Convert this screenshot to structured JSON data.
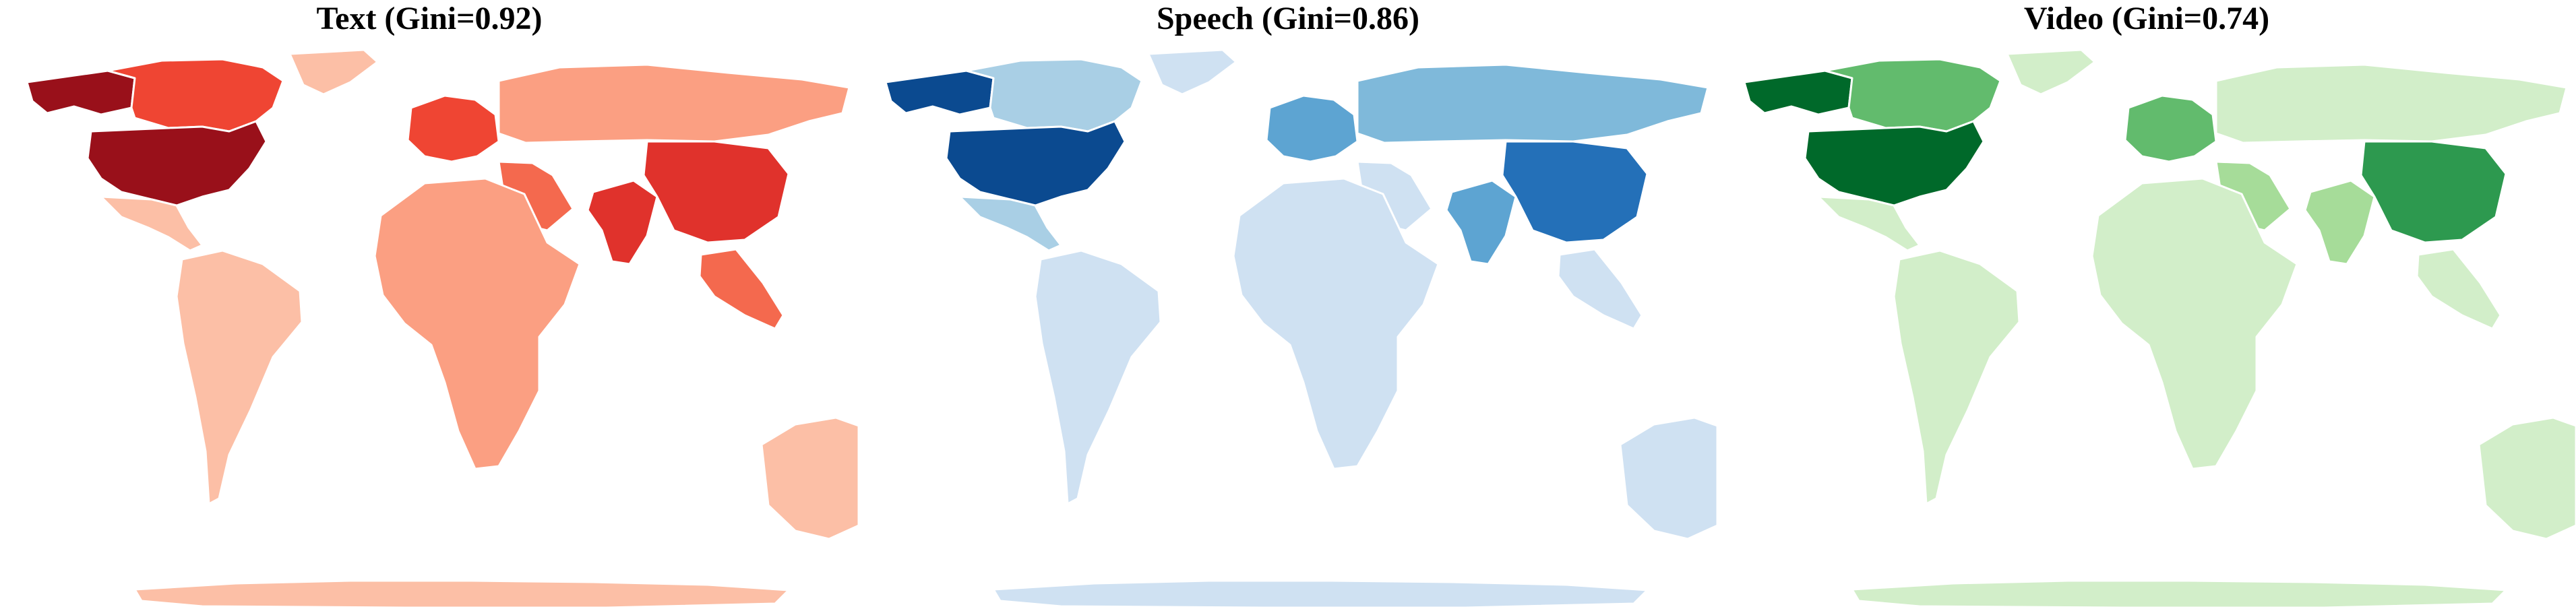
{
  "maps": [
    {
      "title": "Text (Gini=0.92)",
      "colors": {
        "base": "#fcbfa6",
        "mid": "#fb9f82",
        "midlight": "#fcbba0",
        "usa": "#99101a",
        "canada": "#ef4533",
        "alaska": "#99101a",
        "greenland": "#fcbfa6",
        "china": "#e0322c",
        "india": "#e0322c",
        "europe": "#ef4533",
        "russia": "#fb9f82",
        "mexico": "#fcbfa6",
        "southamerica": "#fcbfa6",
        "africa": "#fb9f82",
        "mideast": "#f4694e",
        "australia": "#fcbfa6",
        "antarctica": "#fcbfa6",
        "seasia": "#f4694e"
      }
    },
    {
      "title": "Speech (Gini=0.86)",
      "colors": {
        "base": "#cfe1f2",
        "mid": "#a9cfe5",
        "midlight": "#cfe1f2",
        "usa": "#0b4a90",
        "canada": "#a9cfe5",
        "alaska": "#0b4a90",
        "greenland": "#cfe1f2",
        "china": "#2470b8",
        "india": "#5da4d2",
        "europe": "#5da4d2",
        "russia": "#7fb9da",
        "mexico": "#a9cfe5",
        "southamerica": "#cfe1f2",
        "africa": "#cfe1f2",
        "mideast": "#cfe1f2",
        "australia": "#cfe1f2",
        "antarctica": "#cfe1f2",
        "seasia": "#cfe1f2"
      }
    },
    {
      "title": "Video (Gini=0.74)",
      "colors": {
        "base": "#d2eec9",
        "mid": "#a6dc99",
        "midlight": "#d2eec9",
        "usa": "#00692a",
        "canada": "#62bb6d",
        "alaska": "#00692a",
        "greenland": "#d2eec9",
        "china": "#2d994f",
        "india": "#a6dc99",
        "europe": "#62bb6d",
        "russia": "#d2eec9",
        "mexico": "#d2eec9",
        "southamerica": "#d2eec9",
        "africa": "#d2eec9",
        "mideast": "#a6dc99",
        "australia": "#d2eec9",
        "antarctica": "#d2eec9",
        "seasia": "#d2eec9"
      }
    }
  ]
}
